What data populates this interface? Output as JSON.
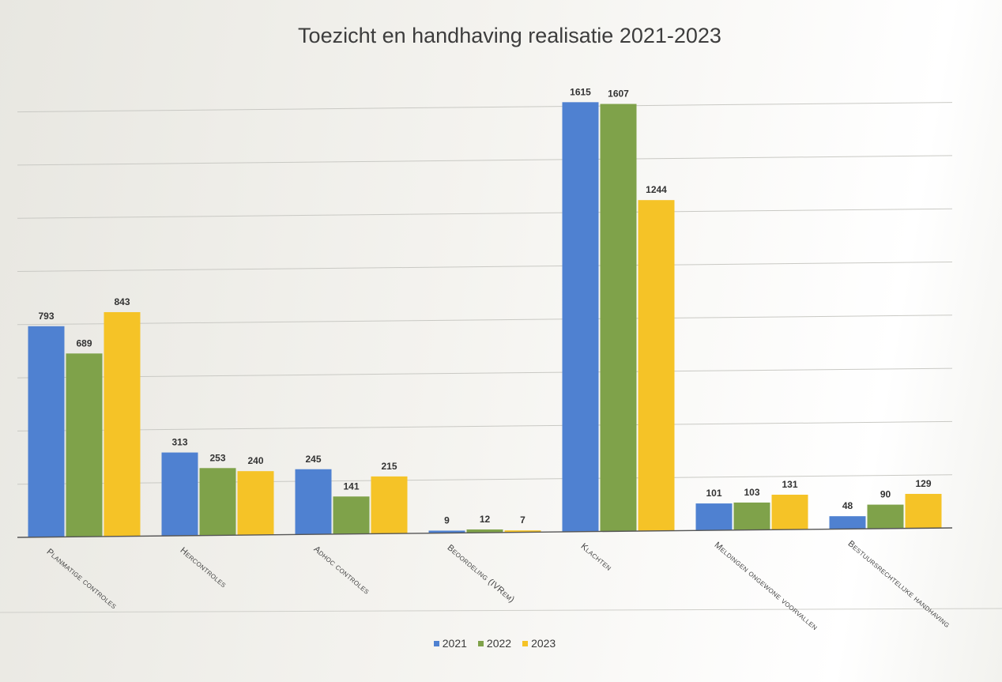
{
  "chart_data": {
    "type": "bar",
    "title": "Toezicht en handhaving realisatie 2021-2023",
    "categories": [
      "Planmatige controles",
      "Hercontroles",
      "Adhoc controles",
      "Beoordeling (IVRem)",
      "Klachten",
      "Meldingen ongewone voorvallen",
      "Bestuursrechtelijke handhaving"
    ],
    "series": [
      {
        "name": "2021",
        "color": "#4f81d1",
        "values": [
          793,
          313,
          245,
          9,
          1615,
          101,
          48
        ]
      },
      {
        "name": "2022",
        "color": "#7fa24a",
        "values": [
          689,
          253,
          141,
          12,
          1607,
          103,
          90
        ]
      },
      {
        "name": "2023",
        "color": "#f5c327",
        "values": [
          843,
          240,
          215,
          7,
          1244,
          131,
          129
        ]
      }
    ],
    "ylim": [
      0,
      1600
    ],
    "grid": true,
    "legend_position": "bottom-center"
  }
}
